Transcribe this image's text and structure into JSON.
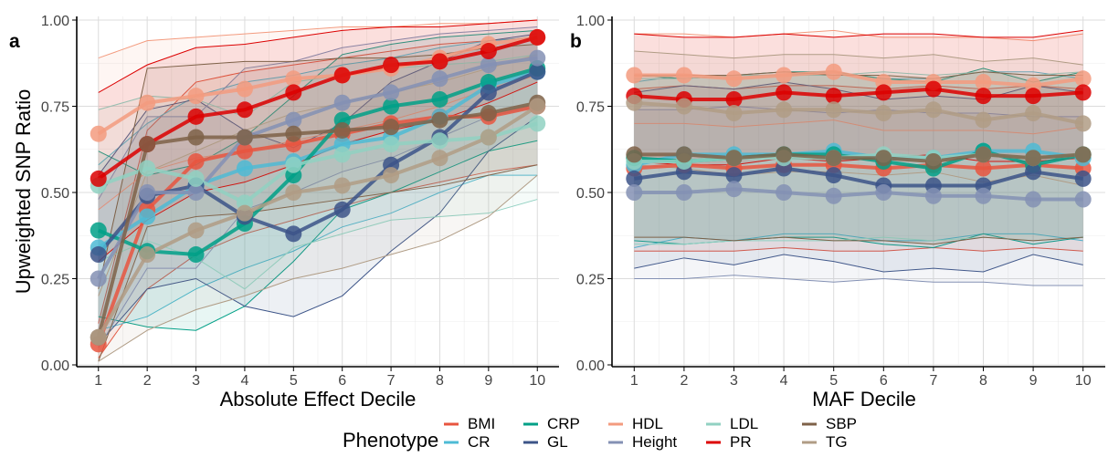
{
  "y_label": "Upweighted SNP Ratio",
  "legend": {
    "title": "Phenotype",
    "entries": [
      {
        "name": "BMI",
        "color": "#E8553F"
      },
      {
        "name": "CR",
        "color": "#4DBBD5"
      },
      {
        "name": "CRP",
        "color": "#00A087"
      },
      {
        "name": "GL",
        "color": "#3C5488"
      },
      {
        "name": "HDL",
        "color": "#F39B7F"
      },
      {
        "name": "Height",
        "color": "#8491B4"
      },
      {
        "name": "LDL",
        "color": "#91D1C2"
      },
      {
        "name": "PR",
        "color": "#DC0000"
      },
      {
        "name": "SBP",
        "color": "#7E6148"
      },
      {
        "name": "TG",
        "color": "#B09C85"
      }
    ]
  },
  "chart_data": [
    {
      "type": "line",
      "panel": "a",
      "xlabel": "Absolute Effect Decile",
      "ylabel": "Upweighted SNP Ratio",
      "x": [
        1,
        2,
        3,
        4,
        5,
        6,
        7,
        8,
        9,
        10
      ],
      "xlim": [
        1,
        10
      ],
      "ylim": [
        0,
        1
      ],
      "y_ticks": [
        "0.00",
        "0.25",
        "0.50",
        "0.75",
        "1.00"
      ],
      "grid": true,
      "series": [
        {
          "name": "BMI",
          "values": [
            0.06,
            0.45,
            0.59,
            0.62,
            0.64,
            0.67,
            0.7,
            0.72,
            0.72,
            0.75
          ],
          "lower": [
            0.02,
            0.22,
            0.32,
            0.38,
            0.42,
            0.46,
            0.5,
            0.53,
            0.56,
            0.58
          ],
          "upper": [
            0.12,
            0.68,
            0.82,
            0.85,
            0.87,
            0.89,
            0.91,
            0.93,
            0.94,
            0.95
          ]
        },
        {
          "name": "CR",
          "values": [
            0.34,
            0.43,
            0.52,
            0.57,
            0.59,
            0.64,
            0.66,
            0.72,
            0.81,
            0.85
          ],
          "lower": [
            0.1,
            0.14,
            0.22,
            0.28,
            0.33,
            0.4,
            0.44,
            0.5,
            0.55,
            0.55
          ],
          "upper": [
            0.58,
            0.7,
            0.78,
            0.82,
            0.84,
            0.87,
            0.89,
            0.92,
            0.94,
            0.95
          ]
        },
        {
          "name": "CRP",
          "values": [
            0.39,
            0.33,
            0.32,
            0.41,
            0.55,
            0.71,
            0.75,
            0.77,
            0.82,
            0.86
          ],
          "lower": [
            0.14,
            0.11,
            0.1,
            0.17,
            0.3,
            0.45,
            0.5,
            0.56,
            0.62,
            0.65
          ],
          "upper": [
            0.62,
            0.55,
            0.58,
            0.66,
            0.78,
            0.9,
            0.93,
            0.95,
            0.96,
            0.97
          ]
        },
        {
          "name": "GL",
          "values": [
            0.32,
            0.49,
            0.52,
            0.43,
            0.38,
            0.45,
            0.58,
            0.66,
            0.79,
            0.85
          ],
          "lower": [
            0.06,
            0.22,
            0.25,
            0.17,
            0.14,
            0.2,
            0.33,
            0.44,
            0.62,
            0.72
          ],
          "upper": [
            0.55,
            0.74,
            0.77,
            0.68,
            0.63,
            0.7,
            0.82,
            0.88,
            0.94,
            0.96
          ]
        },
        {
          "name": "HDL",
          "values": [
            0.67,
            0.76,
            0.78,
            0.8,
            0.83,
            0.84,
            0.86,
            0.89,
            0.93,
            0.95
          ],
          "lower": [
            0.45,
            0.56,
            0.6,
            0.62,
            0.65,
            0.68,
            0.71,
            0.75,
            0.8,
            0.84
          ],
          "upper": [
            0.89,
            0.94,
            0.95,
            0.96,
            0.97,
            0.98,
            0.98,
            0.99,
            0.99,
            1.0
          ]
        },
        {
          "name": "Height",
          "values": [
            0.25,
            0.5,
            0.5,
            0.66,
            0.71,
            0.76,
            0.79,
            0.83,
            0.87,
            0.89
          ],
          "lower": [
            0.05,
            0.28,
            0.28,
            0.45,
            0.5,
            0.56,
            0.6,
            0.66,
            0.72,
            0.75
          ],
          "upper": [
            0.48,
            0.72,
            0.72,
            0.86,
            0.88,
            0.92,
            0.94,
            0.96,
            0.97,
            0.98
          ]
        },
        {
          "name": "LDL",
          "values": [
            0.52,
            0.57,
            0.54,
            0.47,
            0.58,
            0.61,
            0.64,
            0.65,
            0.66,
            0.7
          ],
          "lower": [
            0.3,
            0.36,
            0.31,
            0.22,
            0.34,
            0.38,
            0.42,
            0.43,
            0.44,
            0.48
          ],
          "upper": [
            0.74,
            0.78,
            0.77,
            0.72,
            0.82,
            0.84,
            0.86,
            0.87,
            0.88,
            0.9
          ]
        },
        {
          "name": "PR",
          "values": [
            0.54,
            0.64,
            0.72,
            0.74,
            0.79,
            0.84,
            0.87,
            0.88,
            0.91,
            0.95
          ],
          "lower": [
            0.3,
            0.42,
            0.5,
            0.53,
            0.58,
            0.64,
            0.68,
            0.71,
            0.76,
            0.82
          ],
          "upper": [
            0.79,
            0.87,
            0.92,
            0.93,
            0.95,
            0.97,
            0.98,
            0.98,
            0.99,
            1.0
          ]
        },
        {
          "name": "SBP",
          "values": [
            0.08,
            0.64,
            0.66,
            0.66,
            0.67,
            0.68,
            0.69,
            0.71,
            0.73,
            0.76
          ],
          "lower": [
            0.01,
            0.4,
            0.43,
            0.44,
            0.46,
            0.48,
            0.5,
            0.52,
            0.55,
            0.58
          ],
          "upper": [
            0.22,
            0.86,
            0.87,
            0.88,
            0.88,
            0.89,
            0.89,
            0.9,
            0.92,
            0.93
          ]
        },
        {
          "name": "TG",
          "values": [
            0.08,
            0.32,
            0.39,
            0.44,
            0.5,
            0.52,
            0.55,
            0.6,
            0.66,
            0.75
          ],
          "lower": [
            0.01,
            0.1,
            0.16,
            0.2,
            0.25,
            0.28,
            0.32,
            0.36,
            0.43,
            0.55
          ],
          "upper": [
            0.2,
            0.56,
            0.62,
            0.68,
            0.73,
            0.76,
            0.79,
            0.82,
            0.86,
            0.9
          ]
        }
      ]
    },
    {
      "type": "line",
      "panel": "b",
      "xlabel": "MAF Decile",
      "ylabel": "",
      "x": [
        1,
        2,
        3,
        4,
        5,
        6,
        7,
        8,
        9,
        10
      ],
      "xlim": [
        1,
        10
      ],
      "ylim": [
        0,
        1
      ],
      "y_ticks": [
        "0.00",
        "0.25",
        "0.50",
        "0.75",
        "1.00"
      ],
      "grid": true,
      "series": [
        {
          "name": "BMI",
          "values": [
            0.57,
            0.58,
            0.57,
            0.58,
            0.58,
            0.57,
            0.58,
            0.57,
            0.58,
            0.57
          ],
          "lower": [
            0.33,
            0.33,
            0.33,
            0.34,
            0.33,
            0.33,
            0.34,
            0.33,
            0.34,
            0.33
          ],
          "upper": [
            0.8,
            0.81,
            0.8,
            0.81,
            0.81,
            0.8,
            0.81,
            0.8,
            0.81,
            0.8
          ]
        },
        {
          "name": "CR",
          "values": [
            0.58,
            0.61,
            0.61,
            0.61,
            0.62,
            0.6,
            0.6,
            0.62,
            0.62,
            0.6
          ],
          "lower": [
            0.34,
            0.37,
            0.36,
            0.38,
            0.38,
            0.36,
            0.36,
            0.38,
            0.38,
            0.36
          ],
          "upper": [
            0.82,
            0.84,
            0.84,
            0.84,
            0.85,
            0.83,
            0.83,
            0.85,
            0.85,
            0.83
          ]
        },
        {
          "name": "CRP",
          "values": [
            0.6,
            0.59,
            0.6,
            0.61,
            0.61,
            0.59,
            0.57,
            0.62,
            0.58,
            0.61
          ],
          "lower": [
            0.36,
            0.35,
            0.36,
            0.37,
            0.37,
            0.35,
            0.34,
            0.38,
            0.35,
            0.37
          ],
          "upper": [
            0.84,
            0.83,
            0.84,
            0.85,
            0.85,
            0.83,
            0.82,
            0.86,
            0.82,
            0.85
          ]
        },
        {
          "name": "GL",
          "values": [
            0.54,
            0.56,
            0.55,
            0.57,
            0.55,
            0.52,
            0.52,
            0.52,
            0.56,
            0.54
          ],
          "lower": [
            0.28,
            0.31,
            0.29,
            0.32,
            0.3,
            0.27,
            0.28,
            0.27,
            0.32,
            0.29
          ],
          "upper": [
            0.79,
            0.81,
            0.8,
            0.82,
            0.8,
            0.77,
            0.78,
            0.77,
            0.81,
            0.79
          ]
        },
        {
          "name": "HDL",
          "values": [
            0.84,
            0.84,
            0.83,
            0.84,
            0.85,
            0.82,
            0.82,
            0.82,
            0.81,
            0.83
          ],
          "lower": [
            0.7,
            0.7,
            0.69,
            0.7,
            0.71,
            0.68,
            0.68,
            0.68,
            0.67,
            0.69
          ],
          "upper": [
            0.96,
            0.96,
            0.95,
            0.96,
            0.97,
            0.95,
            0.95,
            0.95,
            0.94,
            0.96
          ]
        },
        {
          "name": "Height",
          "values": [
            0.5,
            0.5,
            0.51,
            0.5,
            0.49,
            0.5,
            0.49,
            0.49,
            0.48,
            0.48
          ],
          "lower": [
            0.25,
            0.25,
            0.26,
            0.25,
            0.24,
            0.25,
            0.24,
            0.24,
            0.23,
            0.23
          ],
          "upper": [
            0.74,
            0.74,
            0.75,
            0.74,
            0.73,
            0.74,
            0.73,
            0.73,
            0.72,
            0.72
          ]
        },
        {
          "name": "LDL",
          "values": [
            0.59,
            0.59,
            0.6,
            0.6,
            0.6,
            0.61,
            0.6,
            0.61,
            0.6,
            0.61
          ],
          "lower": [
            0.35,
            0.35,
            0.36,
            0.36,
            0.36,
            0.37,
            0.36,
            0.37,
            0.36,
            0.37
          ],
          "upper": [
            0.83,
            0.83,
            0.84,
            0.84,
            0.84,
            0.85,
            0.84,
            0.85,
            0.84,
            0.85
          ]
        },
        {
          "name": "PR",
          "values": [
            0.78,
            0.77,
            0.77,
            0.79,
            0.78,
            0.79,
            0.8,
            0.78,
            0.78,
            0.79
          ],
          "lower": [
            0.59,
            0.58,
            0.58,
            0.6,
            0.59,
            0.6,
            0.61,
            0.59,
            0.59,
            0.6
          ],
          "upper": [
            0.96,
            0.95,
            0.95,
            0.96,
            0.95,
            0.96,
            0.96,
            0.95,
            0.95,
            0.97
          ]
        },
        {
          "name": "SBP",
          "values": [
            0.61,
            0.61,
            0.6,
            0.61,
            0.6,
            0.6,
            0.59,
            0.61,
            0.6,
            0.61
          ],
          "lower": [
            0.37,
            0.37,
            0.36,
            0.37,
            0.36,
            0.36,
            0.35,
            0.37,
            0.36,
            0.37
          ],
          "upper": [
            0.84,
            0.84,
            0.84,
            0.85,
            0.84,
            0.84,
            0.83,
            0.85,
            0.84,
            0.84
          ]
        },
        {
          "name": "TG",
          "values": [
            0.76,
            0.75,
            0.73,
            0.74,
            0.74,
            0.73,
            0.74,
            0.71,
            0.73,
            0.7
          ],
          "lower": [
            0.58,
            0.57,
            0.55,
            0.56,
            0.56,
            0.55,
            0.56,
            0.53,
            0.55,
            0.52
          ],
          "upper": [
            0.91,
            0.9,
            0.89,
            0.9,
            0.9,
            0.89,
            0.9,
            0.88,
            0.89,
            0.87
          ]
        }
      ]
    }
  ]
}
